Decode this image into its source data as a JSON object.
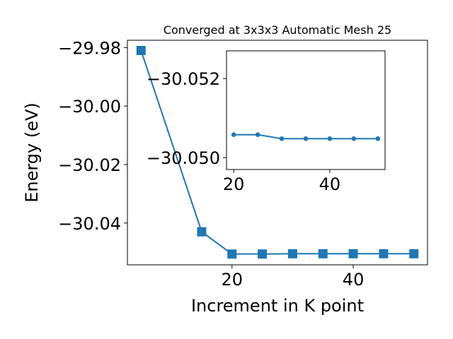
{
  "chart_data": [
    {
      "type": "line",
      "title": "Converged at 3x3x3 Automatic Mesh 25",
      "xlabel": "Increment in K point",
      "ylabel": "Energy (eV)",
      "x": [
        5,
        15,
        20,
        25,
        30,
        35,
        40,
        45,
        50
      ],
      "series": [
        {
          "values": [
            -29.981,
            -30.043,
            -30.0506,
            -30.0506,
            -30.0505,
            -30.0505,
            -30.0505,
            -30.0505,
            -30.0505
          ],
          "color": "#1f77b4",
          "marker": "square"
        }
      ],
      "xlim": [
        2.75,
        52.25
      ],
      "ylim": [
        -30.0543,
        -29.9775
      ],
      "xticks": [
        20,
        40
      ],
      "xtick_labels": [
        "20",
        "40"
      ],
      "yticks": [
        -29.98,
        -30.0,
        -30.02,
        -30.04
      ],
      "ytick_labels": [
        "−29.98",
        "−30.00",
        "−30.02",
        "−30.04"
      ],
      "grid": false,
      "legend": "none"
    },
    {
      "type": "line",
      "title": "",
      "xlabel": "",
      "ylabel": "",
      "x": [
        20,
        25,
        30,
        35,
        40,
        45,
        50
      ],
      "series": [
        {
          "values": [
            -30.05058,
            -30.05058,
            -30.05048,
            -30.05048,
            -30.05048,
            -30.05048,
            -30.05048
          ],
          "color": "#1f77b4",
          "marker": "circle"
        }
      ],
      "xlim": [
        18.5,
        51.5
      ],
      "ylim": [
        -30.0497,
        -30.0527
      ],
      "xticks": [
        20,
        40
      ],
      "xtick_labels": [
        "20",
        "40"
      ],
      "yticks": [
        -30.052,
        -30.05
      ],
      "ytick_labels": [
        "−30.052",
        "−30.050"
      ],
      "grid": false,
      "legend": "none"
    }
  ]
}
